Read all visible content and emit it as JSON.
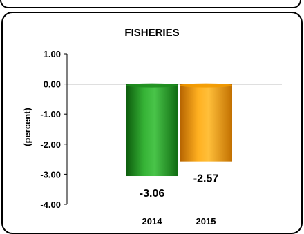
{
  "chart_data": {
    "type": "bar",
    "title": "FISHERIES",
    "ylabel": "(percent)",
    "xlabel": "",
    "categories": [
      "2014",
      "2015"
    ],
    "values": [
      -3.06,
      -2.57
    ],
    "data_labels": [
      "-3.06",
      "-2.57"
    ],
    "yticks": [
      "1.00",
      "0.00",
      "-1.00",
      "-2.00",
      "-3.00",
      "-4.00"
    ],
    "ytick_values": [
      1,
      0,
      -1,
      -2,
      -3,
      -4
    ],
    "ylim": [
      -4,
      1
    ],
    "grid": false,
    "colors": [
      "#1e8c1e",
      "#f29a00"
    ]
  }
}
